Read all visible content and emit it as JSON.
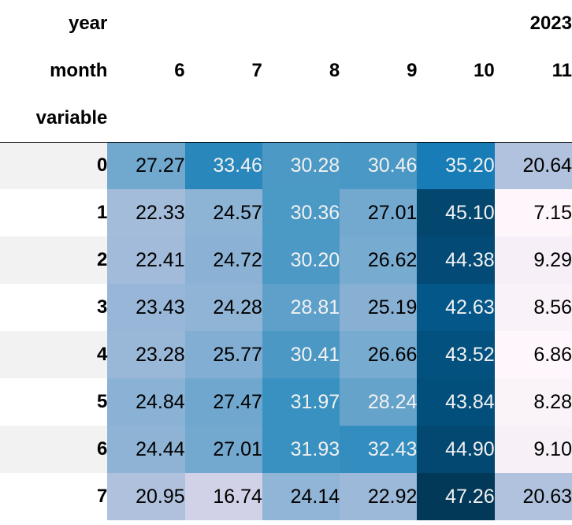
{
  "chart_data": {
    "type": "heatmap",
    "colormap": "PuBu",
    "header_levels": [
      {
        "label": "year",
        "labels": [
          "",
          "",
          "",
          "",
          "",
          "2023"
        ]
      },
      {
        "label": "month",
        "labels": [
          "6",
          "7",
          "8",
          "9",
          "10",
          "11"
        ]
      },
      {
        "label": "variable",
        "labels": [
          "",
          "",
          "",
          "",
          "",
          ""
        ]
      }
    ],
    "rows": [
      "0",
      "1",
      "2",
      "3",
      "4",
      "5",
      "6",
      "7"
    ],
    "columns": [
      6,
      7,
      8,
      9,
      10,
      11
    ],
    "values": [
      [
        27.27,
        33.46,
        30.28,
        30.46,
        35.2,
        20.64
      ],
      [
        22.33,
        24.57,
        30.36,
        27.01,
        45.1,
        7.15
      ],
      [
        22.41,
        24.72,
        30.2,
        26.62,
        44.38,
        9.29
      ],
      [
        23.43,
        24.28,
        28.81,
        25.19,
        42.63,
        8.56
      ],
      [
        23.28,
        25.77,
        30.41,
        26.66,
        43.52,
        6.86
      ],
      [
        24.84,
        27.47,
        31.97,
        28.24,
        43.84,
        8.28
      ],
      [
        24.44,
        27.01,
        31.93,
        32.43,
        44.9,
        9.1
      ],
      [
        20.95,
        16.74,
        24.14,
        22.92,
        47.26,
        20.63
      ]
    ],
    "color_range": [
      6.86,
      47.26
    ]
  }
}
